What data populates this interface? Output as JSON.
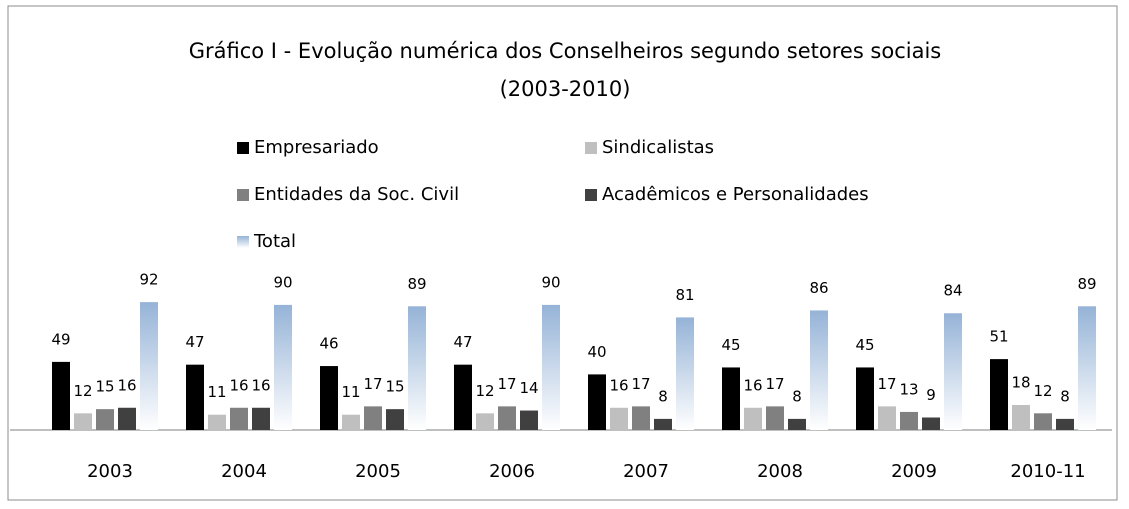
{
  "chart_data": {
    "type": "bar",
    "title": [
      "Gráfico I - Evolução numérica dos Conselheiros segundo setores sociais",
      "(2003-2010)"
    ],
    "categories": [
      "2003",
      "2004",
      "2005",
      "2006",
      "2007",
      "2008",
      "2009",
      "2010-11"
    ],
    "series": [
      {
        "name": "Empresariado",
        "color": "#000000",
        "values": [
          49,
          47,
          46,
          47,
          40,
          45,
          45,
          51
        ]
      },
      {
        "name": "Sindicalistas",
        "color": "#bfbfbf",
        "values": [
          12,
          11,
          11,
          12,
          16,
          16,
          17,
          18
        ]
      },
      {
        "name": "Entidades da Soc. Civil",
        "color": "#808080",
        "values": [
          15,
          16,
          17,
          17,
          17,
          17,
          13,
          12
        ]
      },
      {
        "name": "Acadêmicos e Personalidades",
        "color": "#404040",
        "values": [
          16,
          16,
          15,
          14,
          8,
          8,
          9,
          8
        ]
      },
      {
        "name": "Total",
        "color": "#95b3d7",
        "gradient": true,
        "values": [
          92,
          90,
          89,
          90,
          81,
          86,
          84,
          89
        ]
      }
    ],
    "legend": "top",
    "grid": false
  }
}
